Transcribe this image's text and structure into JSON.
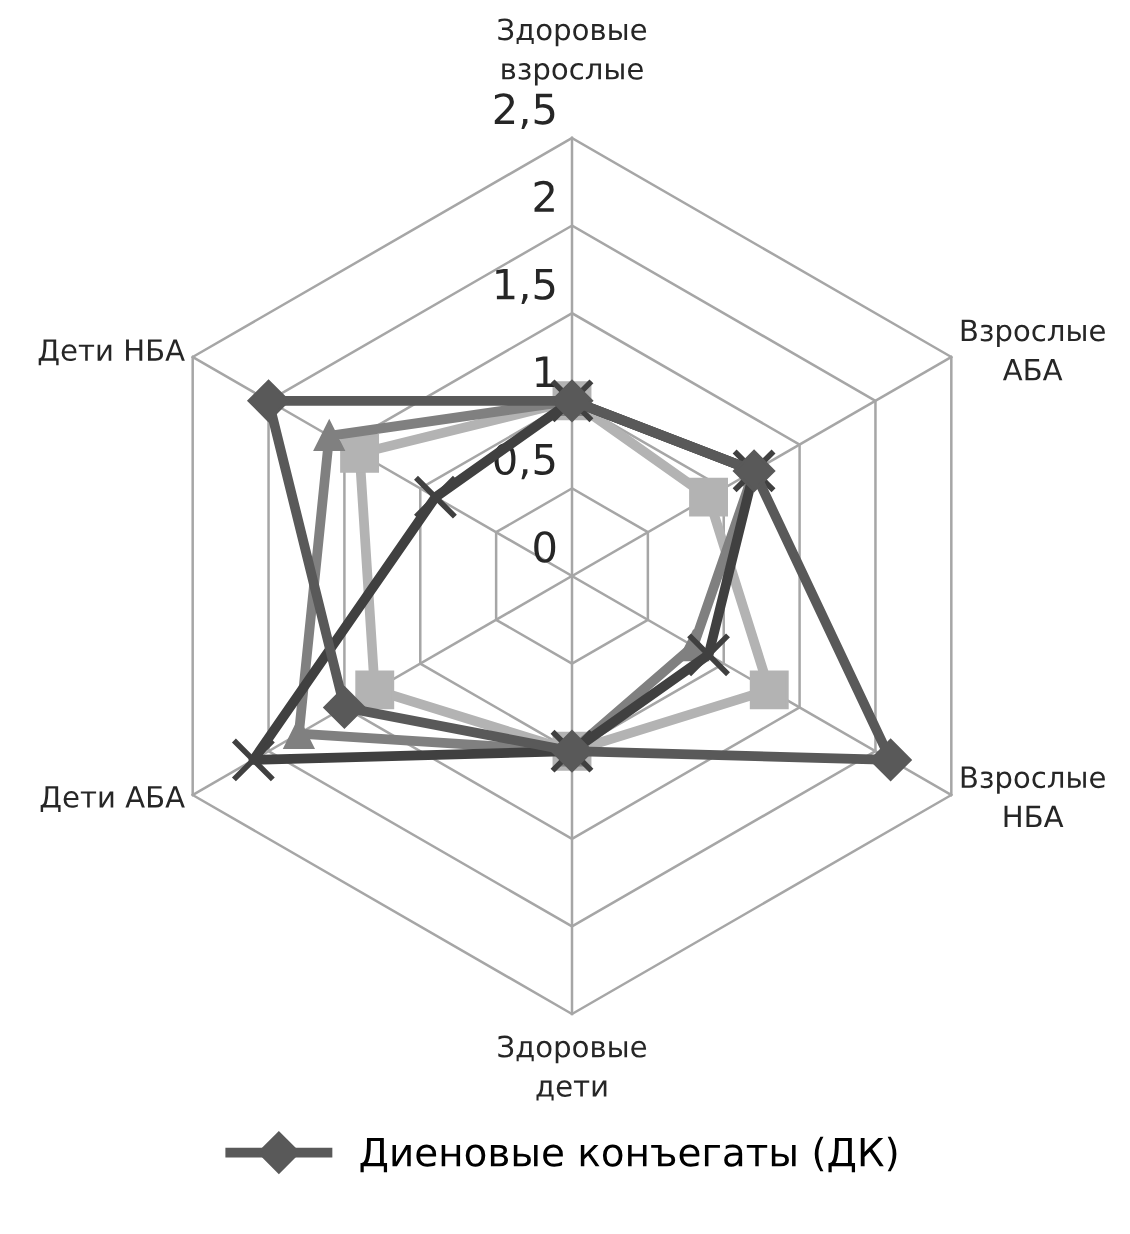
{
  "chart_data": {
    "type": "radar",
    "categories": [
      "Здоровые\nвзрослые",
      "Взрослые\nАБА",
      "Взрослые\nНБА",
      "Здоровые\nдети",
      "Дети АБА",
      "Дети НБА"
    ],
    "ylim": [
      0,
      2.5
    ],
    "yticks": [
      0,
      {
        "value": 0.5,
        "label": "0,5"
      },
      1,
      {
        "value": 1.5,
        "label": "1,5"
      },
      2,
      {
        "value": 2.5,
        "label": "2,5"
      }
    ],
    "grid": true,
    "legend": "bottom",
    "line_style": "solid",
    "series": [
      {
        "color": "#b3b3b3",
        "marker": "square",
        "values": [
          1.0,
          0.9,
          1.3,
          1.0,
          1.3,
          1.4
        ]
      },
      {
        "color": "#808080",
        "marker": "triangle",
        "values": [
          1.0,
          1.2,
          0.8,
          1.0,
          1.8,
          1.6
        ]
      },
      {
        "color": "#404040",
        "marker": "cross",
        "values": [
          1.0,
          1.2,
          0.9,
          1.0,
          2.1,
          0.9
        ]
      },
      {
        "name": "Диеновые конъегаты (ДК)",
        "color": "#595959",
        "marker": "diamond",
        "values": [
          1.0,
          1.2,
          2.1,
          1.0,
          1.5,
          2.0
        ]
      }
    ]
  }
}
